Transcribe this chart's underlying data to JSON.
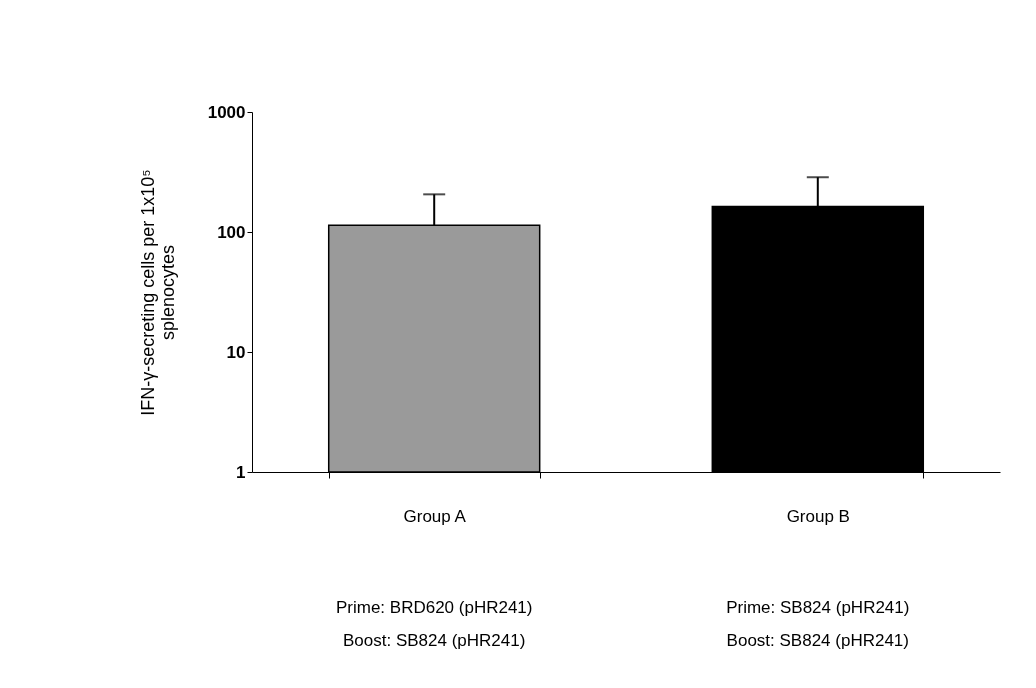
{
  "chart_data": {
    "type": "bar",
    "categories": [
      "Group A",
      "Group B"
    ],
    "values": [
      114,
      163
    ],
    "colors": [
      "#9a9a9a",
      "#000000"
    ],
    "errors": [
      [
        114,
        206
      ],
      [
        163,
        286
      ]
    ],
    "ylabel": "IFN-γ-secreting cells per 1x10⁵ splenocytes",
    "log": true,
    "ylim": [
      1,
      1000
    ],
    "yticks": [
      1,
      10,
      100,
      1000
    ],
    "grid": false,
    "annotations": [
      "Prime: BRD620 (pHR241)",
      "Prime: SB824 (pHR241)",
      "Boost: SB824 (pHR241)",
      "Boost: SB824 (pHR241)"
    ]
  }
}
